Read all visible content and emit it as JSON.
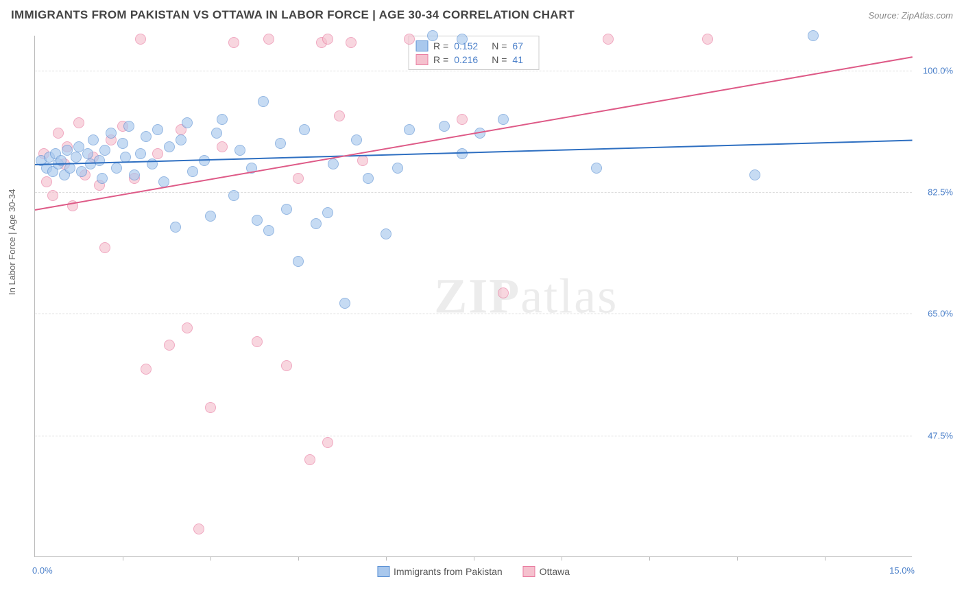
{
  "title": "IMMIGRANTS FROM PAKISTAN VS OTTAWA IN LABOR FORCE | AGE 30-34 CORRELATION CHART",
  "source": "Source: ZipAtlas.com",
  "watermark_a": "ZIP",
  "watermark_b": "atlas",
  "chart": {
    "type": "scatter",
    "ylabel": "In Labor Force | Age 30-34",
    "xlim": [
      0,
      15
    ],
    "ylim": [
      30,
      105
    ],
    "x_end_labels": [
      "0.0%",
      "15.0%"
    ],
    "ytick_values": [
      47.5,
      65.0,
      82.5,
      100.0
    ],
    "ytick_labels": [
      "47.5%",
      "65.0%",
      "82.5%",
      "100.0%"
    ],
    "xtick_values": [
      1.5,
      3.0,
      4.5,
      6.0,
      7.5,
      9.0,
      10.5,
      12.0,
      13.5
    ],
    "grid_color": "#dddddd",
    "axis_color": "#bbbbbb",
    "background_color": "#ffffff",
    "series": [
      {
        "name": "Immigrants from Pakistan",
        "fill": "#a9c8ed",
        "stroke": "#5b91d4",
        "trend_color": "#2e6fc1",
        "R": "0.152",
        "N": "67",
        "trend": {
          "x0": 0,
          "y0": 86.5,
          "x1": 15,
          "y1": 90.0
        },
        "points": [
          [
            0.1,
            87.0
          ],
          [
            0.2,
            86.0
          ],
          [
            0.25,
            87.5
          ],
          [
            0.3,
            85.5
          ],
          [
            0.35,
            88.0
          ],
          [
            0.4,
            86.5
          ],
          [
            0.45,
            87.0
          ],
          [
            0.5,
            85.0
          ],
          [
            0.55,
            88.5
          ],
          [
            0.6,
            86.0
          ],
          [
            0.7,
            87.5
          ],
          [
            0.75,
            89.0
          ],
          [
            0.8,
            85.5
          ],
          [
            0.9,
            88.0
          ],
          [
            0.95,
            86.5
          ],
          [
            1.0,
            90.0
          ],
          [
            1.1,
            87.0
          ],
          [
            1.15,
            84.5
          ],
          [
            1.2,
            88.5
          ],
          [
            1.3,
            91.0
          ],
          [
            1.4,
            86.0
          ],
          [
            1.5,
            89.5
          ],
          [
            1.55,
            87.5
          ],
          [
            1.6,
            92.0
          ],
          [
            1.7,
            85.0
          ],
          [
            1.8,
            88.0
          ],
          [
            1.9,
            90.5
          ],
          [
            2.0,
            86.5
          ],
          [
            2.1,
            91.5
          ],
          [
            2.2,
            84.0
          ],
          [
            2.3,
            89.0
          ],
          [
            2.4,
            77.5
          ],
          [
            2.5,
            90.0
          ],
          [
            2.6,
            92.5
          ],
          [
            2.7,
            85.5
          ],
          [
            2.9,
            87.0
          ],
          [
            3.0,
            79.0
          ],
          [
            3.1,
            91.0
          ],
          [
            3.2,
            93.0
          ],
          [
            3.4,
            82.0
          ],
          [
            3.5,
            88.5
          ],
          [
            3.7,
            86.0
          ],
          [
            3.8,
            78.5
          ],
          [
            3.9,
            95.5
          ],
          [
            4.0,
            77.0
          ],
          [
            4.2,
            89.5
          ],
          [
            4.3,
            80.0
          ],
          [
            4.5,
            72.5
          ],
          [
            4.6,
            91.5
          ],
          [
            4.8,
            78.0
          ],
          [
            5.0,
            79.5
          ],
          [
            5.1,
            86.5
          ],
          [
            5.3,
            66.5
          ],
          [
            5.5,
            90.0
          ],
          [
            5.7,
            84.5
          ],
          [
            6.0,
            76.5
          ],
          [
            6.2,
            86.0
          ],
          [
            6.4,
            91.5
          ],
          [
            6.8,
            105.0
          ],
          [
            7.0,
            92.0
          ],
          [
            7.3,
            88.0
          ],
          [
            7.3,
            104.5
          ],
          [
            7.6,
            91.0
          ],
          [
            8.0,
            93.0
          ],
          [
            9.6,
            86.0
          ],
          [
            12.3,
            85.0
          ],
          [
            13.3,
            105.0
          ]
        ]
      },
      {
        "name": "Ottawa",
        "fill": "#f5c1ce",
        "stroke": "#e97ba0",
        "trend_color": "#de5a87",
        "R": "0.216",
        "N": "41",
        "trend": {
          "x0": 0,
          "y0": 80.0,
          "x1": 15,
          "y1": 102.0
        },
        "points": [
          [
            0.15,
            88.0
          ],
          [
            0.2,
            84.0
          ],
          [
            0.3,
            82.0
          ],
          [
            0.4,
            91.0
          ],
          [
            0.5,
            86.5
          ],
          [
            0.55,
            89.0
          ],
          [
            0.65,
            80.5
          ],
          [
            0.75,
            92.5
          ],
          [
            0.85,
            85.0
          ],
          [
            1.0,
            87.5
          ],
          [
            1.1,
            83.5
          ],
          [
            1.2,
            74.5
          ],
          [
            1.3,
            90.0
          ],
          [
            1.5,
            92.0
          ],
          [
            1.7,
            84.5
          ],
          [
            1.8,
            104.5
          ],
          [
            1.9,
            57.0
          ],
          [
            2.1,
            88.0
          ],
          [
            2.3,
            60.5
          ],
          [
            2.5,
            91.5
          ],
          [
            2.6,
            63.0
          ],
          [
            2.8,
            34.0
          ],
          [
            3.0,
            51.5
          ],
          [
            3.2,
            89.0
          ],
          [
            3.4,
            104.0
          ],
          [
            3.8,
            61.0
          ],
          [
            4.0,
            104.5
          ],
          [
            4.3,
            57.5
          ],
          [
            4.5,
            84.5
          ],
          [
            4.7,
            44.0
          ],
          [
            4.9,
            104.0
          ],
          [
            5.0,
            46.5
          ],
          [
            5.0,
            104.5
          ],
          [
            5.2,
            93.5
          ],
          [
            5.4,
            104.0
          ],
          [
            5.6,
            87.0
          ],
          [
            6.4,
            104.5
          ],
          [
            7.3,
            93.0
          ],
          [
            8.0,
            68.0
          ],
          [
            9.8,
            104.5
          ],
          [
            11.5,
            104.5
          ]
        ]
      }
    ]
  }
}
